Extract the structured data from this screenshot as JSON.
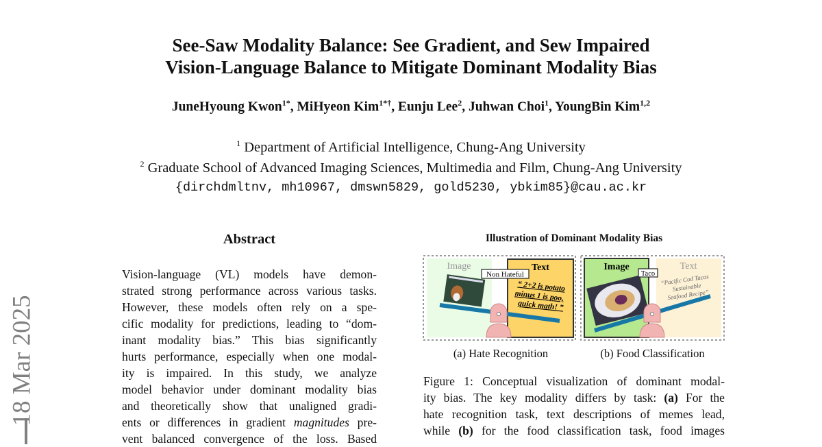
{
  "title": [
    "See-Saw Modality Balance: See Gradient, and Sew Impaired",
    "Vision-Language Balance to Mitigate Dominant Modality Bias"
  ],
  "authors": [
    {
      "name": "JuneHyoung Kwon",
      "sup": "1*"
    },
    {
      "name": "MiHyeon Kim",
      "sup": "1*†"
    },
    {
      "name": "Eunju Lee",
      "sup": "2"
    },
    {
      "name": "Juhwan Choi",
      "sup": "1"
    },
    {
      "name": "YoungBin Kim",
      "sup": "1,2"
    }
  ],
  "affiliations": [
    {
      "sup": "1",
      "text": "Department of Artificial Intelligence, Chung-Ang University"
    },
    {
      "sup": "2",
      "text": "Graduate School of Advanced Imaging Sciences, Multimedia and Film, Chung-Ang University"
    }
  ],
  "emails": "{dirchdmltnv, mh10967, dmswn5829, gold5230, ybkim85}@cau.ac.kr",
  "arxiv_stamp": "18 Mar 2025",
  "abstract": {
    "heading": "Abstract",
    "lines": [
      "Vision-language (VL) models have demon-",
      "strated strong performance across various tasks.",
      "However, these models often rely on a spe-",
      "cific modality for predictions, leading to “dom-",
      "inant modality bias.”  This bias significantly",
      "hurts performance, especially when one modal-",
      "ity is impaired.  In this study, we analyze",
      "model behavior under dominant modality bias",
      "and theoretically show that unaligned gradi-"
    ],
    "line10": {
      "pre": "ents or differences in gradient ",
      "em": "magnitudes",
      "post": " pre-"
    },
    "line11": "vent balanced convergence of the loss. Based"
  },
  "figure": {
    "title": "Illustration of Dominant Modality Bias",
    "panel_a": {
      "image_label": "Image",
      "text_label": "Text",
      "prediction": "Non Hateful",
      "meme_text": [
        "“ 2+2 is potato",
        "minus 1 is poo,",
        "quick math! ”"
      ],
      "caption": "(a) Hate Recognition"
    },
    "panel_b": {
      "image_label": "Image",
      "text_label": "Text",
      "prediction": "Taco",
      "recipe_text": [
        "“Pacific Cod Tacos",
        "Sustainable",
        "Seafood Recipe”"
      ],
      "caption": "(b) Food Classification"
    },
    "colors": {
      "dominant_text": "#fdd468",
      "weak_image": "#eafbe6",
      "dominant_image": "#b5e88f",
      "weak_text": "#fdf1d6",
      "beam": "#1778a8",
      "fulcrum": "#f2b3b3"
    },
    "caption_lines": [
      {
        "parts": [
          "Figure 1: Conceptual visualization of dominant modal-"
        ]
      },
      {
        "pre": "ity bias. The key modality differs by task: ",
        "b": "(a)",
        "post": " For the"
      },
      {
        "parts": [
          "hate recognition task, text descriptions of memes lead,"
        ]
      },
      {
        "pre": "while ",
        "b": "(b)",
        "post": " for the food classification task, food images"
      }
    ]
  }
}
